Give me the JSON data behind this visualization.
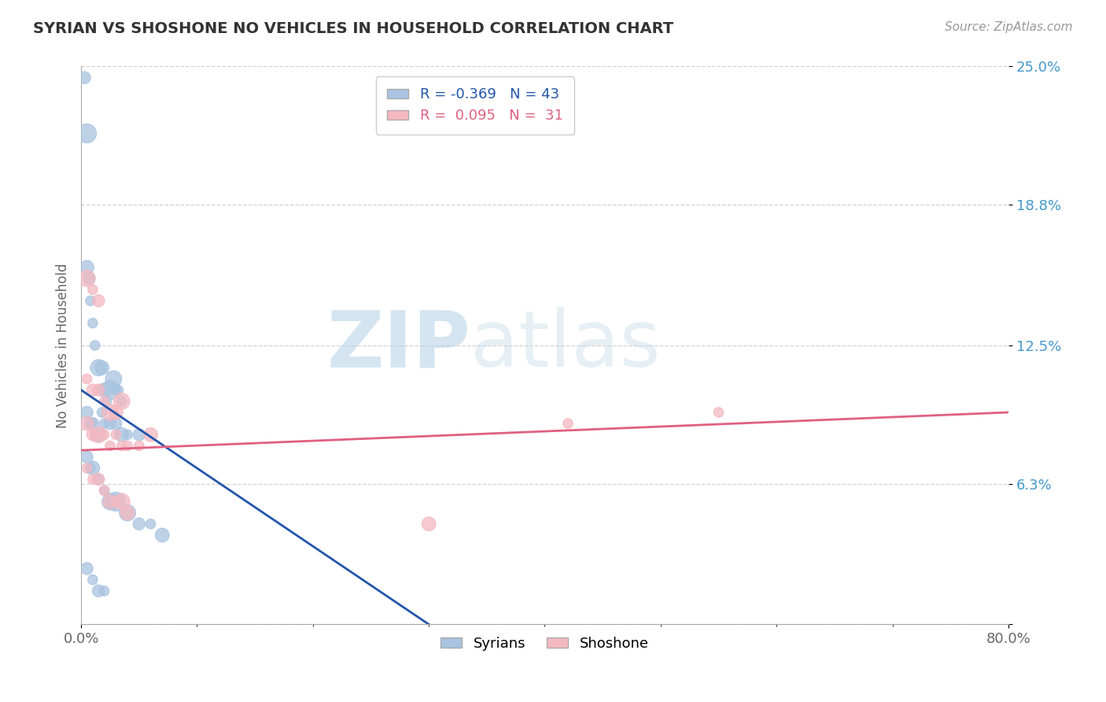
{
  "title": "SYRIAN VS SHOSHONE NO VEHICLES IN HOUSEHOLD CORRELATION CHART",
  "source": "Source: ZipAtlas.com",
  "xlabel": "",
  "ylabel": "No Vehicles in Household",
  "xlim": [
    0,
    80
  ],
  "ylim": [
    0,
    25
  ],
  "xticks": [
    0,
    80
  ],
  "xticklabels": [
    "0.0%",
    "80.0%"
  ],
  "ytick_positions": [
    0,
    6.3,
    12.5,
    18.8,
    25.0
  ],
  "ytick_labels": [
    "",
    "6.3%",
    "12.5%",
    "18.8%",
    "25.0%"
  ],
  "grid_color": "#cccccc",
  "bg_color": "#ffffff",
  "syrian_color": "#a8c4e0",
  "shoshone_color": "#f4b8c1",
  "syrian_line_color": "#2255aa",
  "shoshone_line_color": "#e06080",
  "legend_syrian_R": "-0.369",
  "legend_syrian_N": "43",
  "legend_shoshone_R": "0.095",
  "legend_shoshone_N": "31",
  "watermark_zip": "ZIP",
  "watermark_atlas": "atlas",
  "syrian_scatter_x": [
    0.3,
    0.5,
    0.5,
    0.7,
    0.8,
    1.0,
    1.2,
    1.5,
    1.8,
    2.0,
    2.2,
    2.5,
    2.8,
    3.0,
    3.2,
    3.5,
    0.5,
    0.8,
    1.0,
    1.2,
    1.5,
    1.8,
    2.0,
    2.5,
    3.0,
    3.5,
    4.0,
    5.0,
    0.5,
    0.8,
    1.0,
    1.5,
    2.0,
    2.5,
    3.0,
    4.0,
    5.0,
    6.0,
    7.0,
    0.5,
    1.0,
    1.5,
    2.0
  ],
  "syrian_scatter_y": [
    24.5,
    22.0,
    16.0,
    15.5,
    14.5,
    13.5,
    12.5,
    11.5,
    11.5,
    10.5,
    10.0,
    10.5,
    11.0,
    10.5,
    10.5,
    10.0,
    9.5,
    9.0,
    9.0,
    8.5,
    8.5,
    9.5,
    9.0,
    9.0,
    9.0,
    8.5,
    8.5,
    8.5,
    7.5,
    7.0,
    7.0,
    6.5,
    6.0,
    5.5,
    5.5,
    5.0,
    4.5,
    4.5,
    4.0,
    2.5,
    2.0,
    1.5,
    1.5
  ],
  "shoshone_scatter_x": [
    0.5,
    1.0,
    1.5,
    0.5,
    1.0,
    1.5,
    2.0,
    2.5,
    3.0,
    3.5,
    0.5,
    1.0,
    1.5,
    2.0,
    2.5,
    3.0,
    3.5,
    4.0,
    5.0,
    6.0,
    0.5,
    1.0,
    1.5,
    2.0,
    2.5,
    3.0,
    3.5,
    4.0,
    42.0,
    55.0,
    30.0
  ],
  "shoshone_scatter_y": [
    15.5,
    15.0,
    14.5,
    11.0,
    10.5,
    10.5,
    10.0,
    9.5,
    9.5,
    10.0,
    9.0,
    8.5,
    8.5,
    8.5,
    8.0,
    8.5,
    8.0,
    8.0,
    8.0,
    8.5,
    7.0,
    6.5,
    6.5,
    6.0,
    5.5,
    5.5,
    5.5,
    5.0,
    9.0,
    9.5,
    4.5
  ],
  "syrian_trend_x": [
    0.0,
    30.0
  ],
  "syrian_trend_y": [
    10.5,
    0.0
  ],
  "shoshone_trend_x": [
    0.0,
    80.0
  ],
  "shoshone_trend_y": [
    7.8,
    9.5
  ]
}
